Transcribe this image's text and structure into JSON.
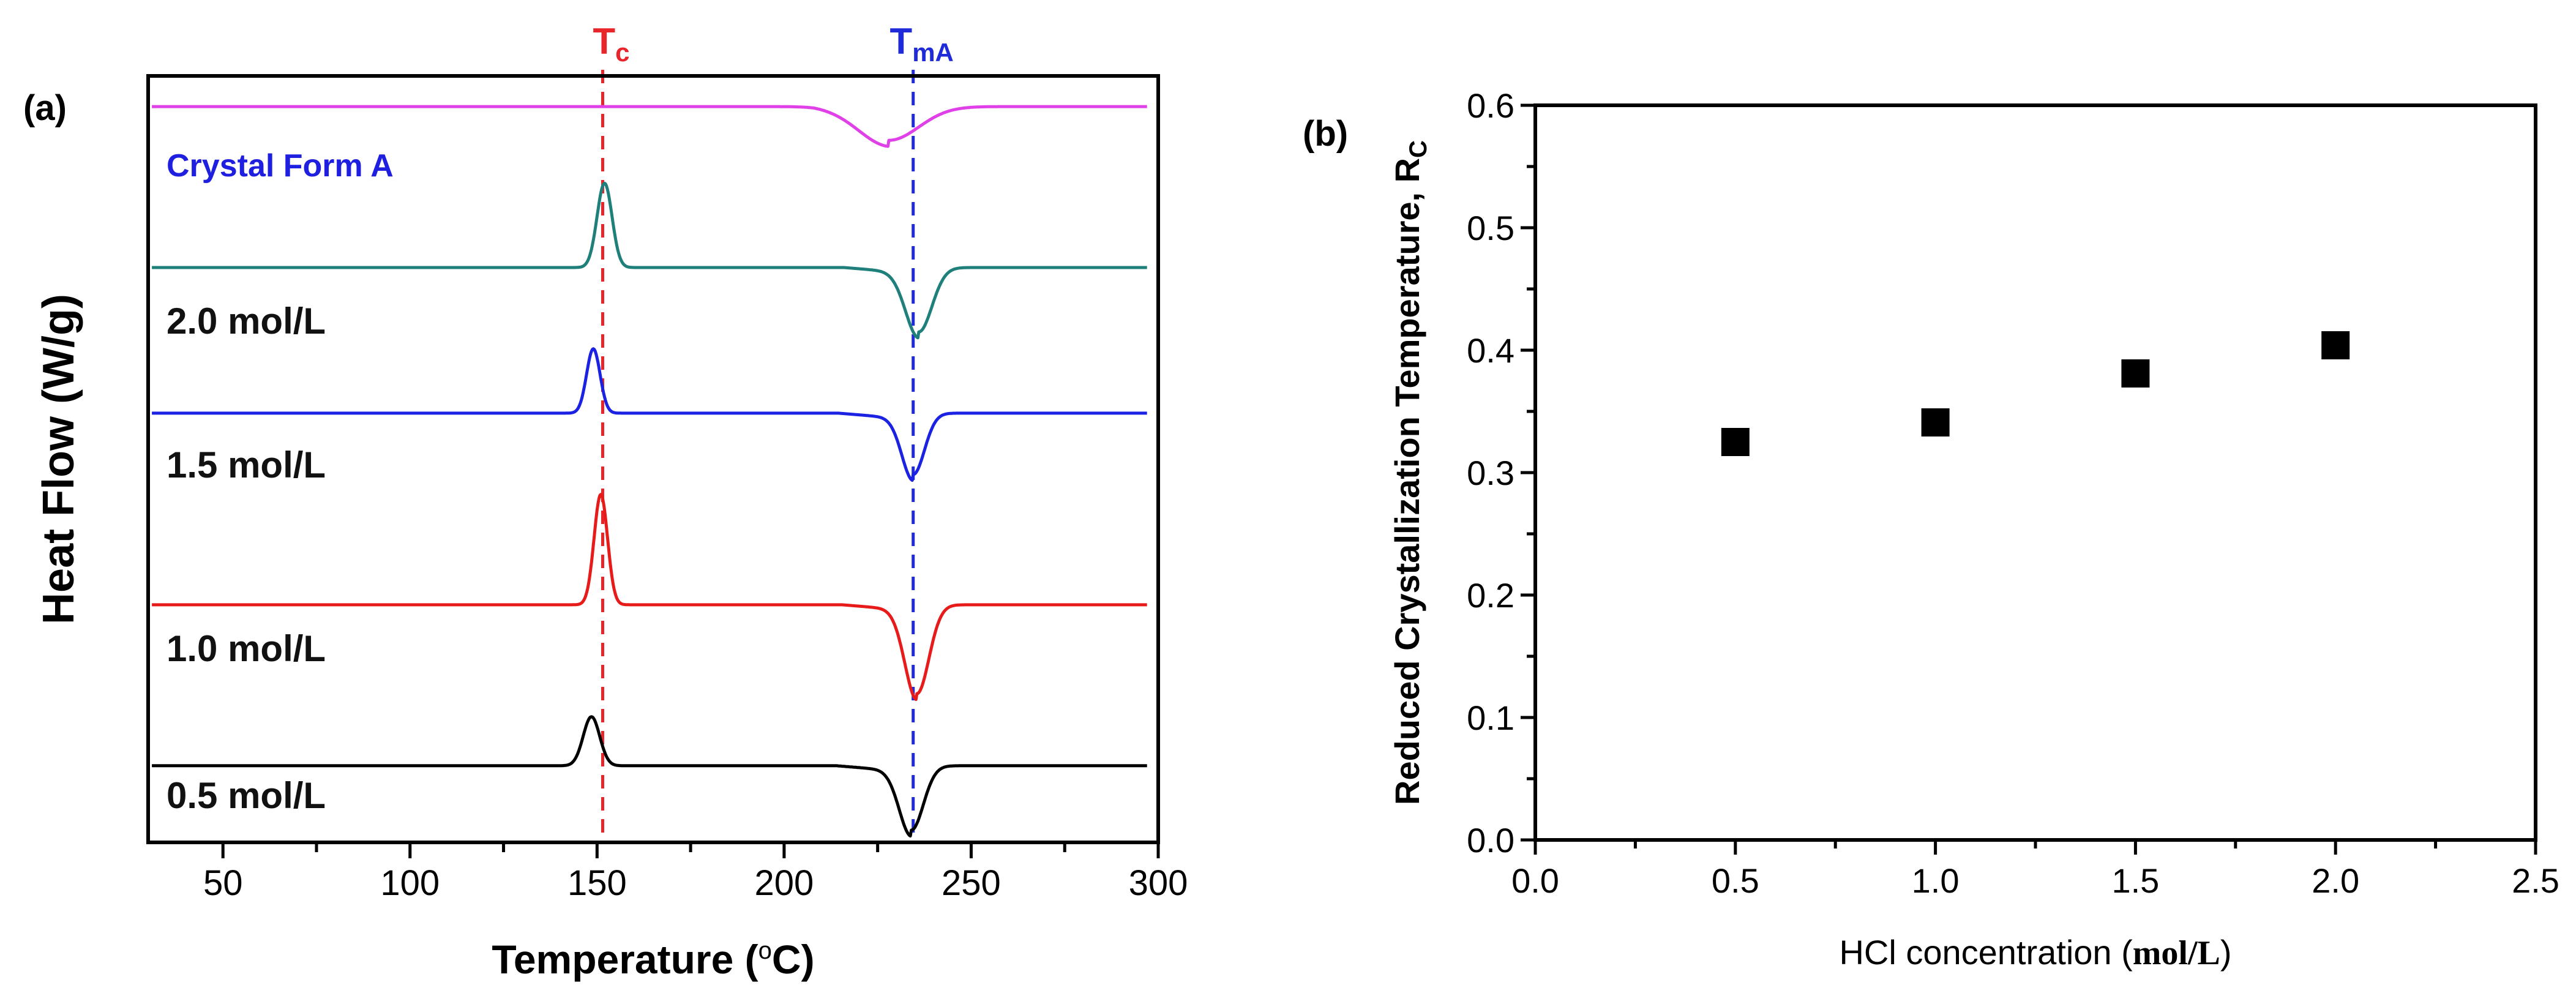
{
  "chart_data": [
    {
      "panel": "(a)",
      "type": "line",
      "title": "",
      "xlabel": "Temperature (",
      "xlabel_unit_symbol": "o",
      "xlabel_unit_tail": "C)",
      "ylabel": "Heat Flow (W/g)",
      "xlim": [
        30,
        300
      ],
      "xticks": [
        50,
        100,
        150,
        200,
        250,
        300
      ],
      "yticks_shown": false,
      "grid": false,
      "markers": [
        {
          "name": "Tc",
          "base": "T",
          "sub": "c",
          "x": 151.5,
          "color": "#e8252a",
          "style": "dashed"
        },
        {
          "name": "TmA",
          "base": "T",
          "sub": "mA",
          "x": 234.5,
          "color": "#1f2bd8",
          "style": "dashed"
        }
      ],
      "series": [
        {
          "name": "Crystal Form A",
          "label": "Crystal Form A",
          "color": "#e040e8",
          "label_color": "#1f1fe0",
          "baseline": 0.96,
          "features": [
            {
              "type": "dip",
              "center": 228,
              "width": 8,
              "depth": 0.22,
              "sharpness": 1.0
            }
          ]
        },
        {
          "name": "2.0 mol/L",
          "label": "2.0 mol/L",
          "color": "#1f7f7a",
          "label_color": "#111111",
          "baseline": 0.75,
          "features": [
            {
              "type": "peak",
              "center": 152,
              "width": 2.0,
              "height": 0.55
            },
            {
              "type": "dip",
              "center": 236,
              "width": 3.5,
              "depth": 0.42
            }
          ]
        },
        {
          "name": "1.5 mol/L",
          "label": "1.5 mol/L",
          "color": "#1c22e2",
          "label_color": "#111111",
          "baseline": 0.56,
          "features": [
            {
              "type": "peak",
              "center": 149,
              "width": 1.8,
              "height": 0.42
            },
            {
              "type": "dip",
              "center": 234.5,
              "width": 3.0,
              "depth": 0.4
            }
          ]
        },
        {
          "name": "1.0 mol/L",
          "label": "1.0 mol/L",
          "color": "#e81b1b",
          "label_color": "#111111",
          "baseline": 0.31,
          "features": [
            {
              "type": "peak",
              "center": 151,
              "width": 1.8,
              "height": 0.72
            },
            {
              "type": "dip",
              "center": 235.5,
              "width": 3.2,
              "depth": 0.58
            }
          ]
        },
        {
          "name": "0.5 mol/L",
          "label": "0.5 mol/L",
          "color": "#000000",
          "label_color": "#111111",
          "baseline": 0.1,
          "features": [
            {
              "type": "peak",
              "center": 148.5,
              "width": 2.2,
              "height": 0.32
            },
            {
              "type": "dip",
              "center": 234,
              "width": 3.2,
              "depth": 0.42
            }
          ]
        }
      ]
    },
    {
      "panel": "(b)",
      "type": "scatter",
      "title": "",
      "xlabel": "HCl concentration (",
      "xlabel_unit": "mol/L",
      "xlabel_close": ")",
      "ylabel": "Reduced Crystallization Temperature, R",
      "ylabel_sub": "C",
      "xlim": [
        0.0,
        2.5
      ],
      "ylim": [
        0.0,
        0.6
      ],
      "xticks": [
        "0.0",
        "0.5",
        "1.0",
        "1.5",
        "2.0",
        "2.5"
      ],
      "yticks": [
        "0.0",
        "0.1",
        "0.2",
        "0.3",
        "0.4",
        "0.5",
        "0.6"
      ],
      "grid": false,
      "marker": "square",
      "color": "#000000",
      "x": [
        0.5,
        1.0,
        1.5,
        2.0
      ],
      "y": [
        0.325,
        0.341,
        0.381,
        0.404
      ]
    }
  ]
}
